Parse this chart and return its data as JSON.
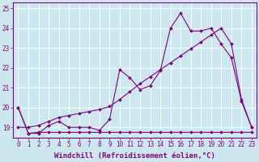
{
  "xlabel": "Windchill (Refroidissement éolien,°C)",
  "background_color": "#cce8ee",
  "grid_color": "#ffffff",
  "line_color": "#800080",
  "x_values": [
    0,
    1,
    2,
    3,
    4,
    5,
    6,
    7,
    8,
    9,
    10,
    11,
    12,
    13,
    14,
    15,
    16,
    17,
    18,
    19,
    20,
    21,
    22,
    23
  ],
  "line_jagged": [
    20.0,
    18.7,
    18.7,
    19.1,
    19.3,
    19.0,
    19.0,
    19.0,
    18.85,
    19.4,
    21.9,
    21.5,
    20.9,
    21.1,
    21.85,
    24.0,
    24.75,
    23.85,
    23.85,
    24.0,
    23.2,
    22.5,
    20.3,
    19.0
  ],
  "line_diagonal": [
    19.0,
    19.0,
    19.1,
    19.3,
    19.5,
    19.6,
    19.7,
    19.8,
    19.9,
    20.05,
    20.4,
    20.8,
    21.2,
    21.55,
    21.9,
    22.25,
    22.6,
    22.95,
    23.3,
    23.65,
    24.0,
    23.2,
    20.4,
    19.0
  ],
  "line_flat": [
    20.0,
    18.7,
    18.75,
    18.75,
    18.75,
    18.75,
    18.75,
    18.75,
    18.75,
    18.75,
    18.75,
    18.75,
    18.75,
    18.75,
    18.75,
    18.75,
    18.75,
    18.75,
    18.75,
    18.75,
    18.75,
    18.75,
    18.75,
    18.75
  ],
  "ylim": [
    18.5,
    25.3
  ],
  "xlim": [
    -0.5,
    23.5
  ],
  "yticks": [
    19,
    20,
    21,
    22,
    23,
    24,
    25
  ],
  "xticks": [
    0,
    1,
    2,
    3,
    4,
    5,
    6,
    7,
    8,
    9,
    10,
    11,
    12,
    13,
    14,
    15,
    16,
    17,
    18,
    19,
    20,
    21,
    22,
    23
  ],
  "markersize": 2.0,
  "linewidth": 0.8,
  "tick_fontsize": 5.5,
  "xlabel_fontsize": 6.5
}
